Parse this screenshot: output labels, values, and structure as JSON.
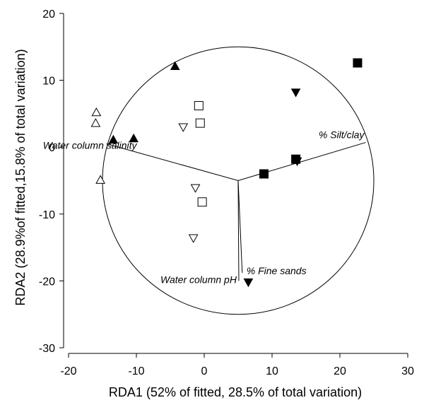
{
  "chart_data": {
    "type": "scatter",
    "xlabel": "RDA1 (52% of fitted, 28.5% of total variation)",
    "ylabel": "RDA2 (28.9%of fitted,15.8% of total variation)",
    "xlim": [
      -20,
      30
    ],
    "ylim": [
      -30,
      20
    ],
    "x_ticks": [
      -20,
      -10,
      0,
      10,
      20,
      30
    ],
    "y_ticks": [
      -30,
      -20,
      -10,
      0,
      10,
      20
    ],
    "grid": false,
    "circle": {
      "center": [
        5,
        -5
      ],
      "radius": 20
    },
    "series": [
      {
        "marker": "open-triangle-up",
        "points": [
          [
            -15.9,
            5.2
          ],
          [
            -16,
            3.6
          ],
          [
            -15.3,
            -4.9
          ]
        ]
      },
      {
        "marker": "filled-triangle-up",
        "points": [
          [
            -13.4,
            1.1
          ],
          [
            -10.4,
            1.3
          ],
          [
            -4.3,
            12.1
          ]
        ]
      },
      {
        "marker": "open-square",
        "points": [
          [
            -0.8,
            6.2
          ],
          [
            -0.6,
            3.6
          ],
          [
            -0.3,
            -8.2
          ]
        ]
      },
      {
        "marker": "open-triangle-down",
        "points": [
          [
            -3.1,
            3
          ],
          [
            -1.3,
            -6.1
          ],
          [
            -1.6,
            -13.6
          ]
        ]
      },
      {
        "marker": "filled-square",
        "points": [
          [
            8.8,
            -4
          ],
          [
            13.5,
            -1.8
          ],
          [
            22.6,
            12.6
          ]
        ]
      },
      {
        "marker": "filled-triangle-down",
        "points": [
          [
            13.5,
            8.2
          ],
          [
            13.7,
            -2.1
          ],
          [
            6.5,
            -20.2
          ]
        ]
      }
    ],
    "vectors": [
      {
        "label": "Water column salinity",
        "end": [
          -14.4,
          0.5
        ]
      },
      {
        "label": "% Silt/clay",
        "end": [
          23.8,
          0.7
        ]
      },
      {
        "label": "Water column pH",
        "end": [
          5.1,
          -20
        ]
      },
      {
        "label": "% Fine sands",
        "end": [
          5.6,
          -18.8
        ]
      }
    ]
  }
}
